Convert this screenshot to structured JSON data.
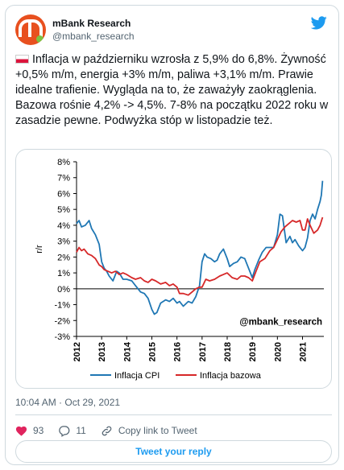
{
  "author": {
    "name": "mBank Research",
    "handle": "@mbank_research"
  },
  "tweet": {
    "text": "Inflacja w październiku wzrosła z 5,9% do 6,8%. Żywność +0,5% m/m, energia +3% m/m, paliwa +3,1% m/m. Prawie idealne trafienie. Wygląda na to, że zaważyły zaokrąglenia. Bazowa rośnie 4,2% -> 4,5%. 7-8% na początku 2022 roku w zasadzie pewne.  Podwyżka stóp w listopadzie też.",
    "timestamp": "10:04 AM · Oct 29, 2021"
  },
  "actions": {
    "likes": "93",
    "replies": "11",
    "copy_link": "Copy link to Tweet",
    "reply_button": "Tweet your reply"
  },
  "colors": {
    "twitter_blue": "#1d9bf0",
    "cpi": "#1f77b4",
    "core": "#d62728",
    "heart": "#e0245e"
  },
  "chart_data": {
    "type": "line",
    "ylabel": "r/r",
    "ylim": [
      -3,
      8
    ],
    "ytick_labels": [
      "8%",
      "7%",
      "6%",
      "5%",
      "4%",
      "3%",
      "2%",
      "1%",
      "0%",
      "-1%",
      "-2%",
      "-3%"
    ],
    "xtick_labels": [
      "2012",
      "2013",
      "2014",
      "2015",
      "2016",
      "2017",
      "2018",
      "2019",
      "2020",
      "2021"
    ],
    "x_range": [
      2012,
      2021.85
    ],
    "annotation": "@mbank_research",
    "grid": false,
    "legend_position": "bottom",
    "series": [
      {
        "name": "Inflacja CPI",
        "color": "#1f77b4",
        "points": [
          [
            2012.0,
            4.1
          ],
          [
            2012.1,
            4.3
          ],
          [
            2012.2,
            3.9
          ],
          [
            2012.35,
            4.0
          ],
          [
            2012.5,
            4.3
          ],
          [
            2012.6,
            3.8
          ],
          [
            2012.75,
            3.4
          ],
          [
            2012.9,
            2.8
          ],
          [
            2013.0,
            1.7
          ],
          [
            2013.1,
            1.3
          ],
          [
            2013.2,
            1.1
          ],
          [
            2013.3,
            0.8
          ],
          [
            2013.45,
            0.5
          ],
          [
            2013.6,
            1.1
          ],
          [
            2013.7,
            1.0
          ],
          [
            2013.85,
            0.6
          ],
          [
            2014.0,
            0.6
          ],
          [
            2014.2,
            0.5
          ],
          [
            2014.35,
            0.2
          ],
          [
            2014.55,
            -0.2
          ],
          [
            2014.7,
            -0.3
          ],
          [
            2014.85,
            -0.6
          ],
          [
            2015.0,
            -1.3
          ],
          [
            2015.1,
            -1.6
          ],
          [
            2015.2,
            -1.5
          ],
          [
            2015.35,
            -0.9
          ],
          [
            2015.55,
            -0.7
          ],
          [
            2015.7,
            -0.8
          ],
          [
            2015.85,
            -0.6
          ],
          [
            2016.0,
            -0.9
          ],
          [
            2016.1,
            -0.8
          ],
          [
            2016.25,
            -1.1
          ],
          [
            2016.45,
            -0.8
          ],
          [
            2016.6,
            -0.9
          ],
          [
            2016.75,
            -0.5
          ],
          [
            2016.9,
            0.2
          ],
          [
            2017.0,
            1.7
          ],
          [
            2017.1,
            2.2
          ],
          [
            2017.2,
            2.0
          ],
          [
            2017.35,
            1.9
          ],
          [
            2017.5,
            1.7
          ],
          [
            2017.6,
            1.8
          ],
          [
            2017.7,
            2.2
          ],
          [
            2017.85,
            2.5
          ],
          [
            2018.0,
            1.9
          ],
          [
            2018.1,
            1.4
          ],
          [
            2018.25,
            1.6
          ],
          [
            2018.4,
            1.7
          ],
          [
            2018.55,
            2.0
          ],
          [
            2018.7,
            1.9
          ],
          [
            2018.85,
            1.3
          ],
          [
            2019.0,
            0.7
          ],
          [
            2019.1,
            1.2
          ],
          [
            2019.25,
            1.8
          ],
          [
            2019.4,
            2.3
          ],
          [
            2019.55,
            2.6
          ],
          [
            2019.7,
            2.6
          ],
          [
            2019.85,
            2.6
          ],
          [
            2020.0,
            3.4
          ],
          [
            2020.1,
            4.7
          ],
          [
            2020.2,
            4.6
          ],
          [
            2020.35,
            2.9
          ],
          [
            2020.5,
            3.3
          ],
          [
            2020.6,
            2.9
          ],
          [
            2020.7,
            3.1
          ],
          [
            2020.85,
            2.7
          ],
          [
            2021.0,
            2.4
          ],
          [
            2021.1,
            2.6
          ],
          [
            2021.2,
            3.2
          ],
          [
            2021.3,
            4.3
          ],
          [
            2021.4,
            4.7
          ],
          [
            2021.5,
            4.4
          ],
          [
            2021.6,
            5.0
          ],
          [
            2021.7,
            5.5
          ],
          [
            2021.75,
            5.9
          ],
          [
            2021.8,
            6.8
          ]
        ]
      },
      {
        "name": "Inflacja bazowa",
        "color": "#d62728",
        "points": [
          [
            2012.0,
            2.3
          ],
          [
            2012.1,
            2.6
          ],
          [
            2012.2,
            2.4
          ],
          [
            2012.3,
            2.5
          ],
          [
            2012.45,
            2.2
          ],
          [
            2012.6,
            2.1
          ],
          [
            2012.75,
            1.9
          ],
          [
            2012.9,
            1.5
          ],
          [
            2013.0,
            1.4
          ],
          [
            2013.1,
            1.2
          ],
          [
            2013.25,
            1.1
          ],
          [
            2013.4,
            1.0
          ],
          [
            2013.55,
            1.1
          ],
          [
            2013.7,
            0.9
          ],
          [
            2013.85,
            1.0
          ],
          [
            2014.0,
            0.9
          ],
          [
            2014.2,
            0.7
          ],
          [
            2014.35,
            0.6
          ],
          [
            2014.55,
            0.7
          ],
          [
            2014.7,
            0.5
          ],
          [
            2014.85,
            0.4
          ],
          [
            2015.0,
            0.6
          ],
          [
            2015.15,
            0.5
          ],
          [
            2015.35,
            0.3
          ],
          [
            2015.55,
            0.4
          ],
          [
            2015.7,
            0.2
          ],
          [
            2015.85,
            0.3
          ],
          [
            2016.0,
            0.1
          ],
          [
            2016.1,
            -0.3
          ],
          [
            2016.25,
            -0.3
          ],
          [
            2016.45,
            -0.4
          ],
          [
            2016.6,
            -0.2
          ],
          [
            2016.75,
            0.0
          ],
          [
            2016.9,
            0.1
          ],
          [
            2017.0,
            0.1
          ],
          [
            2017.15,
            0.6
          ],
          [
            2017.3,
            0.5
          ],
          [
            2017.5,
            0.6
          ],
          [
            2017.7,
            0.8
          ],
          [
            2017.85,
            0.9
          ],
          [
            2018.0,
            1.0
          ],
          [
            2018.2,
            0.7
          ],
          [
            2018.4,
            0.6
          ],
          [
            2018.55,
            0.8
          ],
          [
            2018.7,
            0.8
          ],
          [
            2018.85,
            0.7
          ],
          [
            2019.0,
            0.5
          ],
          [
            2019.15,
            1.1
          ],
          [
            2019.3,
            1.7
          ],
          [
            2019.5,
            1.9
          ],
          [
            2019.7,
            2.4
          ],
          [
            2019.85,
            2.6
          ],
          [
            2020.0,
            3.1
          ],
          [
            2020.15,
            3.6
          ],
          [
            2020.3,
            3.9
          ],
          [
            2020.45,
            4.1
          ],
          [
            2020.6,
            4.3
          ],
          [
            2020.75,
            4.2
          ],
          [
            2020.9,
            4.3
          ],
          [
            2021.0,
            3.7
          ],
          [
            2021.1,
            3.7
          ],
          [
            2021.2,
            4.4
          ],
          [
            2021.3,
            4.0
          ],
          [
            2021.45,
            3.5
          ],
          [
            2021.6,
            3.7
          ],
          [
            2021.7,
            4.0
          ],
          [
            2021.8,
            4.5
          ]
        ]
      }
    ]
  }
}
